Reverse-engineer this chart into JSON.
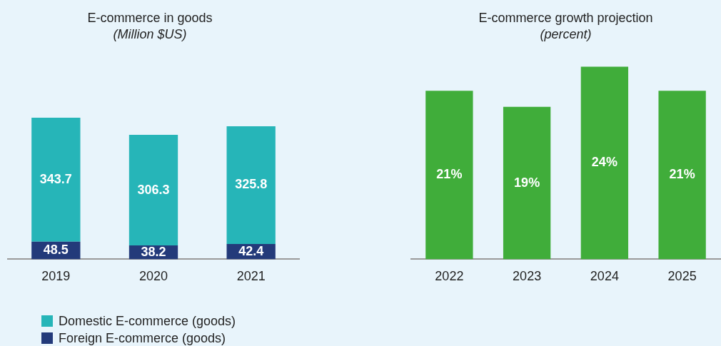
{
  "chart_data": [
    {
      "type": "bar",
      "title": "E-commerce in goods",
      "subtitle": "(Million $US)",
      "categories": [
        "2019",
        "2020",
        "2021"
      ],
      "stacked": true,
      "data_labels": true,
      "legend": "bottom",
      "series": [
        {
          "name": "Foreign E-commerce (goods)",
          "color": "#233a7a",
          "values": [
            48.5,
            38.2,
            42.4
          ]
        },
        {
          "name": "Domestic E-commerce (goods)",
          "color": "#26b5b8",
          "values": [
            343.7,
            306.3,
            325.8
          ]
        }
      ]
    },
    {
      "type": "bar",
      "title": "E-commerce growth projection",
      "subtitle": "(percent)",
      "categories": [
        "2022",
        "2023",
        "2024",
        "2025"
      ],
      "values": [
        21,
        19,
        24,
        21
      ],
      "color": "#40ad3a",
      "value_labels": [
        "21%",
        "19%",
        "24%",
        "21%"
      ]
    }
  ]
}
